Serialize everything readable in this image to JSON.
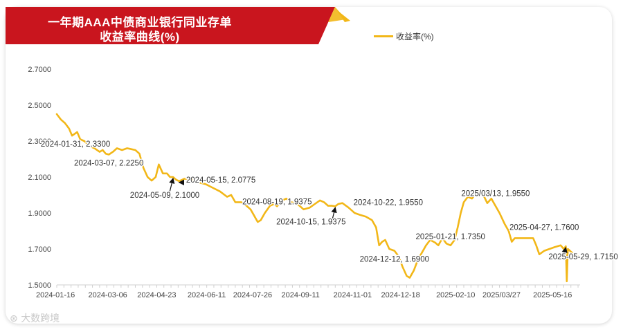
{
  "title_line1": "一年期AAA中债商业银行同业存单",
  "title_line2": "收益率曲线(%)",
  "legend": "收益率(%)",
  "watermark": "大数跨境",
  "colors": {
    "banner": "#c9151e",
    "banner_accent": "#f2b718",
    "series": "#f2b718",
    "arrow": "#111111"
  },
  "chart_data": {
    "type": "line",
    "title": "一年期AAA中债商业银行同业存单收益率曲线(%)",
    "ylim": [
      1.5,
      2.7
    ],
    "y_ticks": [
      "2.7000",
      "2.5000",
      "2.3000",
      "2.1000",
      "1.9000",
      "1.7000",
      "1.5000"
    ],
    "x_ticks": [
      "2024-01-16",
      "2024-03-06",
      "2024-04-23",
      "2024-06-11",
      "2024-07-26",
      "2024-09-11",
      "2024-11-01",
      "2024-12-18",
      "2025-02-10",
      "2025/03/27",
      "2025-05-16"
    ],
    "grid": false,
    "legend_position": "top-right",
    "series": [
      {
        "name": "收益率(%)",
        "points": [
          [
            "2024-01-16",
            2.45
          ],
          [
            "2024-01-20",
            2.42
          ],
          [
            "2024-01-24",
            2.4
          ],
          [
            "2024-01-28",
            2.37
          ],
          [
            "2024-01-31",
            2.33
          ],
          [
            "2024-02-05",
            2.35
          ],
          [
            "2024-02-08",
            2.31
          ],
          [
            "2024-02-12",
            2.3
          ],
          [
            "2024-02-18",
            2.27
          ],
          [
            "2024-02-22",
            2.26
          ],
          [
            "2024-02-27",
            2.24
          ],
          [
            "2024-03-01",
            2.25
          ],
          [
            "2024-03-04",
            2.23
          ],
          [
            "2024-03-07",
            2.225
          ],
          [
            "2024-03-11",
            2.24
          ],
          [
            "2024-03-15",
            2.26
          ],
          [
            "2024-03-20",
            2.25
          ],
          [
            "2024-03-25",
            2.26
          ],
          [
            "2024-03-29",
            2.255
          ],
          [
            "2024-04-02",
            2.25
          ],
          [
            "2024-04-06",
            2.23
          ],
          [
            "2024-04-10",
            2.15
          ],
          [
            "2024-04-14",
            2.1
          ],
          [
            "2024-04-18",
            2.08
          ],
          [
            "2024-04-22",
            2.1
          ],
          [
            "2024-04-25",
            2.17
          ],
          [
            "2024-04-29",
            2.12
          ],
          [
            "2024-05-03",
            2.12
          ],
          [
            "2024-05-06",
            2.1
          ],
          [
            "2024-05-09",
            2.1
          ],
          [
            "2024-05-12",
            2.085
          ],
          [
            "2024-05-15",
            2.0775
          ],
          [
            "2024-05-20",
            2.09
          ],
          [
            "2024-05-27",
            2.09
          ],
          [
            "2024-06-03",
            2.07
          ],
          [
            "2024-06-10",
            2.06
          ],
          [
            "2024-06-17",
            2.04
          ],
          [
            "2024-06-24",
            2.02
          ],
          [
            "2024-07-01",
            1.99
          ],
          [
            "2024-07-05",
            2.0
          ],
          [
            "2024-07-09",
            1.96
          ],
          [
            "2024-07-15",
            1.96
          ],
          [
            "2024-07-20",
            1.94
          ],
          [
            "2024-07-24",
            1.92
          ],
          [
            "2024-07-28",
            1.88
          ],
          [
            "2024-07-31",
            1.85
          ],
          [
            "2024-08-03",
            1.86
          ],
          [
            "2024-08-07",
            1.9
          ],
          [
            "2024-08-12",
            1.94
          ],
          [
            "2024-08-16",
            1.95
          ],
          [
            "2024-08-19",
            1.9375
          ],
          [
            "2024-08-24",
            1.97
          ],
          [
            "2024-08-28",
            1.98
          ],
          [
            "2024-09-02",
            1.96
          ],
          [
            "2024-09-08",
            1.95
          ],
          [
            "2024-09-14",
            1.92
          ],
          [
            "2024-09-20",
            1.93
          ],
          [
            "2024-09-25",
            1.95
          ],
          [
            "2024-09-30",
            1.97
          ],
          [
            "2024-10-04",
            1.96
          ],
          [
            "2024-10-08",
            1.94
          ],
          [
            "2024-10-12",
            1.94
          ],
          [
            "2024-10-15",
            1.9375
          ],
          [
            "2024-10-18",
            1.95
          ],
          [
            "2024-10-22",
            1.955
          ],
          [
            "2024-10-28",
            1.93
          ],
          [
            "2024-11-03",
            1.9
          ],
          [
            "2024-11-08",
            1.89
          ],
          [
            "2024-11-14",
            1.88
          ],
          [
            "2024-11-20",
            1.86
          ],
          [
            "2024-11-24",
            1.82
          ],
          [
            "2024-11-27",
            1.72
          ],
          [
            "2024-11-30",
            1.74
          ],
          [
            "2024-12-03",
            1.75
          ],
          [
            "2024-12-07",
            1.7
          ],
          [
            "2024-12-12",
            1.69
          ],
          [
            "2024-12-16",
            1.66
          ],
          [
            "2024-12-20",
            1.6
          ],
          [
            "2024-12-24",
            1.55
          ],
          [
            "2024-12-27",
            1.54
          ],
          [
            "2024-12-31",
            1.58
          ],
          [
            "2025-01-04",
            1.64
          ],
          [
            "2025-01-08",
            1.68
          ],
          [
            "2025-01-12",
            1.72
          ],
          [
            "2025-01-16",
            1.75
          ],
          [
            "2025-01-21",
            1.735
          ],
          [
            "2025-01-24",
            1.72
          ],
          [
            "2025-01-28",
            1.76
          ],
          [
            "2025-02-01",
            1.73
          ],
          [
            "2025-02-05",
            1.72
          ],
          [
            "2025-02-09",
            1.75
          ],
          [
            "2025-02-12",
            1.82
          ],
          [
            "2025-02-15",
            1.9
          ],
          [
            "2025-02-18",
            1.96
          ],
          [
            "2025-02-22",
            1.99
          ],
          [
            "2025-02-26",
            1.98
          ],
          [
            "2025-03-02",
            2.01
          ],
          [
            "2025-03-06",
            2.02
          ],
          [
            "2025-03-10",
            1.99
          ],
          [
            "2025-03-13",
            1.955
          ],
          [
            "2025-03-17",
            1.98
          ],
          [
            "2025-03-21",
            1.94
          ],
          [
            "2025-03-25",
            1.9
          ],
          [
            "2025-03-30",
            1.84
          ],
          [
            "2025-04-03",
            1.8
          ],
          [
            "2025-04-06",
            1.74
          ],
          [
            "2025-04-09",
            1.76
          ],
          [
            "2025-04-14",
            1.76
          ],
          [
            "2025-04-20",
            1.76
          ],
          [
            "2025-04-27",
            1.76
          ],
          [
            "2025-04-30",
            1.72
          ],
          [
            "2025-05-03",
            1.67
          ],
          [
            "2025-05-08",
            1.69
          ],
          [
            "2025-05-13",
            1.7
          ],
          [
            "2025-05-18",
            1.71
          ],
          [
            "2025-05-24",
            1.72
          ],
          [
            "2025-05-27",
            1.7
          ],
          [
            "2025-05-29",
            1.715
          ],
          [
            "2025-05-30",
            1.52
          ],
          [
            "2025-05-31",
            1.7
          ],
          [
            "2025-06-04",
            1.68
          ],
          [
            "2025-06-08",
            1.66
          ],
          [
            "2025-06-12",
            1.655
          ]
        ]
      }
    ],
    "annotations": [
      {
        "date": "2024-01-31",
        "value": 2.33,
        "label": "2024-01-31, 2.3300",
        "arrow": false
      },
      {
        "date": "2024-03-07",
        "value": 2.225,
        "label": "2024-03-07, 2.2250",
        "arrow": false
      },
      {
        "date": "2024-05-09",
        "value": 2.1,
        "label": "2024-05-09, 2.1000",
        "arrow": true
      },
      {
        "date": "2024-05-15",
        "value": 2.0775,
        "label": "2024-05-15, 2.0775",
        "arrow": true
      },
      {
        "date": "2024-08-19",
        "value": 1.9375,
        "label": "2024-08-19, 1.9375",
        "arrow": false
      },
      {
        "date": "2024-10-15",
        "value": 1.9375,
        "label": "2024-10-15, 1.9375",
        "arrow": true
      },
      {
        "date": "2024-10-22",
        "value": 1.955,
        "label": "2024-10-22, 1.9550",
        "arrow": false
      },
      {
        "date": "2024-12-12",
        "value": 1.69,
        "label": "2024-12-12, 1.6900",
        "arrow": false
      },
      {
        "date": "2025-01-21",
        "value": 1.735,
        "label": "2025-01-21, 1.7350",
        "arrow": false
      },
      {
        "date": "2025-03-13",
        "value": 1.955,
        "label": "2025/03/13, 1.9550",
        "arrow": false
      },
      {
        "date": "2025-04-27",
        "value": 1.76,
        "label": "2025-04-27, 1.7600",
        "arrow": false
      },
      {
        "date": "2025-05-29",
        "value": 1.715,
        "label": "2025-05-29, 1.7150",
        "arrow": true
      }
    ]
  }
}
